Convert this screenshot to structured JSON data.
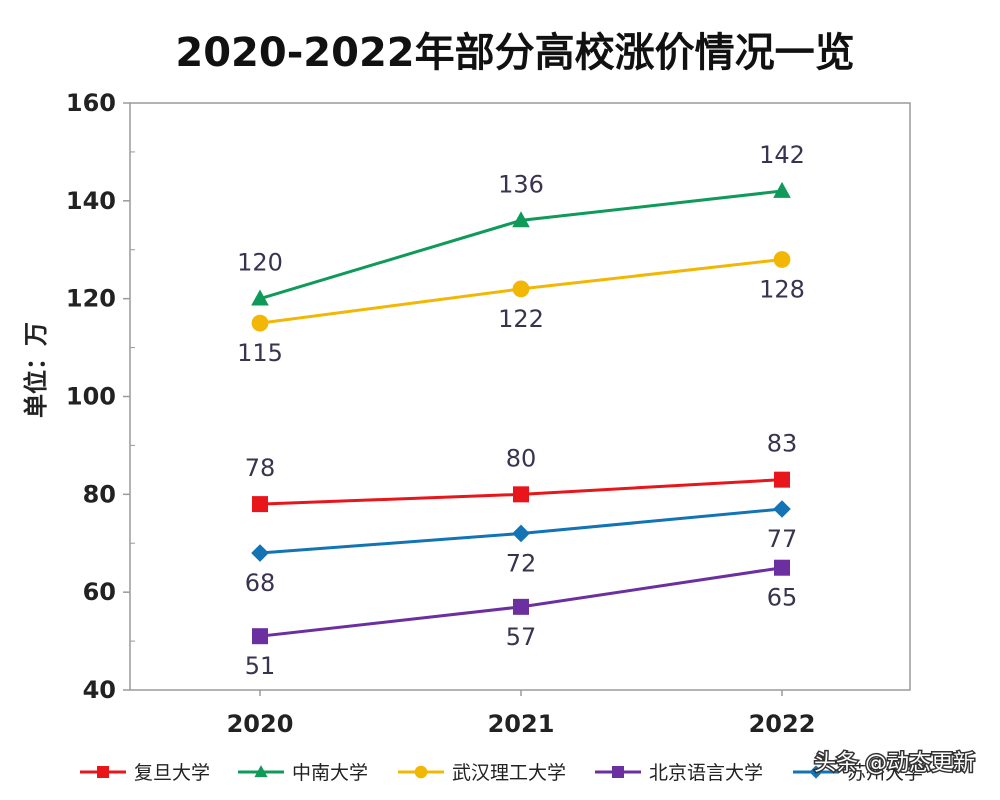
{
  "chart_data": {
    "type": "line",
    "title": "2020-2022年部分高校涨价情况一览",
    "xlabel": "",
    "ylabel": "单位：万",
    "categories": [
      "2020",
      "2021",
      "2022"
    ],
    "ylim": [
      40,
      160
    ],
    "yticks": [
      40,
      60,
      80,
      100,
      120,
      140,
      160
    ],
    "grid": false,
    "legend_position": "bottom",
    "series": [
      {
        "name": "复旦大学",
        "color": "#e8161b",
        "marker": "square",
        "values": [
          78,
          80,
          83
        ],
        "labels": [
          "78",
          "80",
          "83"
        ],
        "label_pos": [
          "above",
          "above",
          "above"
        ]
      },
      {
        "name": "中南大学",
        "color": "#0f9a5a",
        "marker": "triangle",
        "values": [
          120,
          136,
          142
        ],
        "labels": [
          "120",
          "136",
          "142"
        ],
        "label_pos": [
          "above",
          "above",
          "above"
        ]
      },
      {
        "name": "武汉理工大学",
        "color": "#f2b705",
        "marker": "circle",
        "values": [
          115,
          122,
          128
        ],
        "labels": [
          "115",
          "122",
          "128"
        ],
        "label_pos": [
          "below",
          "below",
          "below"
        ]
      },
      {
        "name": "北京语言大学",
        "color": "#6b2fa0",
        "marker": "square",
        "values": [
          51,
          57,
          65
        ],
        "labels": [
          "51",
          "57",
          "65"
        ],
        "label_pos": [
          "below",
          "below",
          "below"
        ]
      },
      {
        "name": "苏州大学",
        "color": "#1273b5",
        "marker": "diamond",
        "values": [
          68,
          72,
          77
        ],
        "labels": [
          "68",
          "72",
          "77"
        ],
        "label_pos": [
          "below",
          "below",
          "below"
        ]
      }
    ]
  },
  "watermark": "头条 @动态更新"
}
